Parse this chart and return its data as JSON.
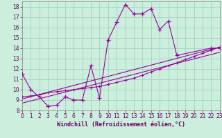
{
  "bg_color": "#cceedd",
  "line_color": "#990099",
  "grid_color": "#99ccbb",
  "xlabel": "Windchill (Refroidissement éolien,°C)",
  "xlim": [
    0,
    23
  ],
  "ylim": [
    8,
    18.5
  ],
  "xticks": [
    0,
    1,
    2,
    3,
    4,
    5,
    6,
    7,
    8,
    9,
    10,
    11,
    12,
    13,
    14,
    15,
    16,
    17,
    18,
    19,
    20,
    21,
    22,
    23
  ],
  "yticks": [
    8,
    9,
    10,
    11,
    12,
    13,
    14,
    15,
    16,
    17,
    18
  ],
  "main_curve_x": [
    0,
    1,
    2,
    3,
    4,
    5,
    6,
    7,
    8,
    9,
    10,
    11,
    12,
    13,
    14,
    15,
    16,
    17,
    18,
    22,
    23
  ],
  "main_curve_y": [
    11.5,
    10.0,
    9.3,
    8.4,
    8.5,
    9.3,
    9.0,
    9.0,
    12.3,
    9.2,
    14.8,
    16.5,
    18.2,
    17.3,
    17.3,
    17.8,
    15.8,
    16.6,
    13.3,
    14.0,
    14.0
  ],
  "diag_line_x": [
    0,
    1,
    2,
    3,
    4,
    5,
    6,
    7,
    8,
    9,
    10,
    11,
    12,
    13,
    14,
    15,
    16,
    17,
    18,
    19,
    20,
    21,
    22,
    23
  ],
  "diag_line_y": [
    9.3,
    9.4,
    9.5,
    9.7,
    9.8,
    9.9,
    10.0,
    10.1,
    10.2,
    10.3,
    10.5,
    10.7,
    10.9,
    11.1,
    11.4,
    11.7,
    12.0,
    12.3,
    12.6,
    12.9,
    13.2,
    13.5,
    13.8,
    14.1
  ],
  "reg_line1_x": [
    0,
    23
  ],
  "reg_line1_y": [
    9.1,
    14.1
  ],
  "reg_line2_x": [
    0,
    23
  ],
  "reg_line2_y": [
    8.7,
    13.6
  ],
  "tick_fontsize": 5.5,
  "label_fontsize": 6.0,
  "tick_color": "#660066",
  "label_color": "#660066"
}
